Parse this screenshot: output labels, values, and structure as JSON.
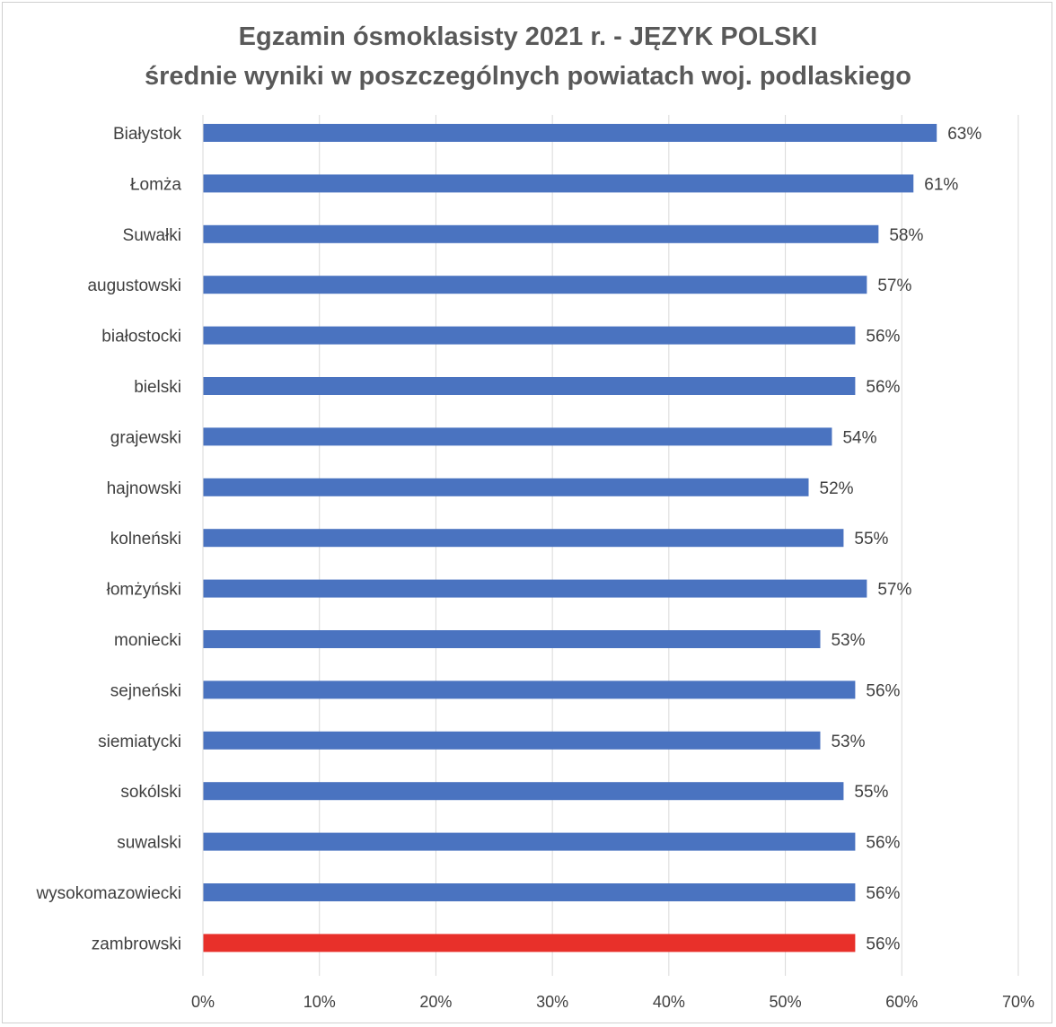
{
  "chart_data": {
    "type": "bar",
    "orientation": "horizontal",
    "title": "Egzamin ósmoklasisty 2021 r. - JĘZYK POLSKI",
    "subtitle": "średnie wyniki w poszczególnych powiatach woj. podlaskiego",
    "xlabel": "",
    "ylabel": "",
    "xlim": [
      0,
      70
    ],
    "x_ticks": [
      "0%",
      "10%",
      "20%",
      "30%",
      "40%",
      "50%",
      "60%",
      "70%"
    ],
    "grid": "vertical",
    "categories": [
      "Białystok",
      "Łomża",
      "Suwałki",
      "augustowski",
      "białostocki",
      "bielski",
      "grajewski",
      "hajnowski",
      "kolneński",
      "łomżyński",
      "moniecki",
      "sejneński",
      "siemiatycki",
      "sokólski",
      "suwalski",
      "wysokomazowiecki",
      "zambrowski"
    ],
    "values": [
      63,
      61,
      58,
      57,
      56,
      56,
      54,
      52,
      55,
      57,
      53,
      56,
      53,
      55,
      56,
      56,
      56
    ],
    "value_labels": [
      "63%",
      "61%",
      "58%",
      "57%",
      "56%",
      "56%",
      "54%",
      "52%",
      "55%",
      "57%",
      "53%",
      "56%",
      "53%",
      "55%",
      "56%",
      "56%",
      "56%"
    ],
    "colors": {
      "bar": "#4a73c0",
      "highlight": "#e8302a",
      "grid": "#d9d9d9",
      "text": "#404040",
      "title": "#595959"
    },
    "highlight_category": "zambrowski"
  }
}
